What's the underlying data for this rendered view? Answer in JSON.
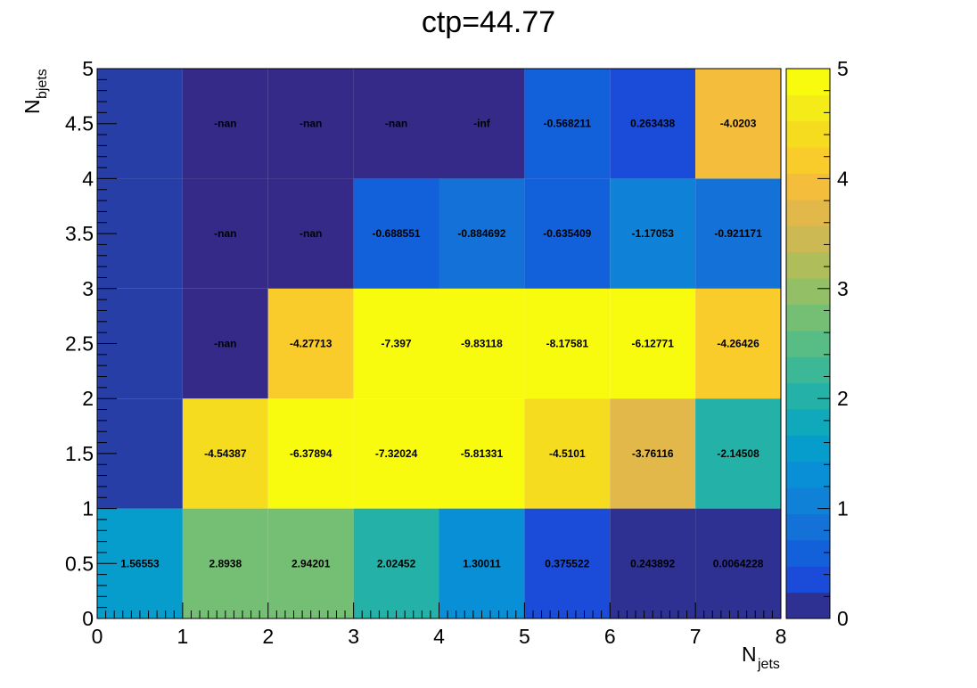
{
  "chart_data": {
    "type": "heatmap",
    "title": "ctp=44.77",
    "xlabel": {
      "main": "N",
      "sub": "jets"
    },
    "ylabel": {
      "main": "N",
      "sub": "bjets"
    },
    "x_edges": [
      0,
      1,
      2,
      3,
      4,
      5,
      6,
      7,
      8
    ],
    "y_edges": [
      0,
      1,
      2,
      3,
      4,
      5
    ],
    "xlim": [
      0,
      8
    ],
    "ylim": [
      0,
      5
    ],
    "x_ticks": [
      "0",
      "1",
      "2",
      "3",
      "4",
      "5",
      "6",
      "7",
      "8"
    ],
    "y_ticks": [
      "0",
      "0.5",
      "1",
      "1.5",
      "2",
      "2.5",
      "3",
      "3.5",
      "4",
      "4.5",
      "5"
    ],
    "z_range": [
      0,
      5
    ],
    "z_ticks": [
      "0",
      "1",
      "2",
      "3",
      "4",
      "5"
    ],
    "cells": [
      {
        "ix": 0,
        "iy": 0,
        "label": "1.56553",
        "z": 1.56553
      },
      {
        "ix": 1,
        "iy": 0,
        "label": "2.8938",
        "z": 2.8938
      },
      {
        "ix": 2,
        "iy": 0,
        "label": "2.94201",
        "z": 2.94201
      },
      {
        "ix": 3,
        "iy": 0,
        "label": "2.02452",
        "z": 2.02452
      },
      {
        "ix": 4,
        "iy": 0,
        "label": "1.30011",
        "z": 1.30011
      },
      {
        "ix": 5,
        "iy": 0,
        "label": "0.375522",
        "z": 0.375522
      },
      {
        "ix": 6,
        "iy": 0,
        "label": "0.243892",
        "z": 0.243892
      },
      {
        "ix": 7,
        "iy": 0,
        "label": "0.0064228",
        "z": 0.0064228
      },
      {
        "ix": 0,
        "iy": 1,
        "label": "",
        "z": 0
      },
      {
        "ix": 1,
        "iy": 1,
        "label": "-4.54387",
        "z": 4.54387
      },
      {
        "ix": 2,
        "iy": 1,
        "label": "-6.37894",
        "z": 6.37894
      },
      {
        "ix": 3,
        "iy": 1,
        "label": "-7.32024",
        "z": 7.32024
      },
      {
        "ix": 4,
        "iy": 1,
        "label": "-5.81331",
        "z": 5.81331
      },
      {
        "ix": 5,
        "iy": 1,
        "label": "-4.5101",
        "z": 4.5101
      },
      {
        "ix": 6,
        "iy": 1,
        "label": "-3.76116",
        "z": 3.76116
      },
      {
        "ix": 7,
        "iy": 1,
        "label": "-2.14508",
        "z": 2.14508
      },
      {
        "ix": 0,
        "iy": 2,
        "label": "",
        "z": 0
      },
      {
        "ix": 1,
        "iy": 2,
        "label": "-nan",
        "z": -1
      },
      {
        "ix": 2,
        "iy": 2,
        "label": "-4.27713",
        "z": 4.27713
      },
      {
        "ix": 3,
        "iy": 2,
        "label": "-7.397",
        "z": 7.397
      },
      {
        "ix": 4,
        "iy": 2,
        "label": "-9.83118",
        "z": 9.83118
      },
      {
        "ix": 5,
        "iy": 2,
        "label": "-8.17581",
        "z": 8.17581
      },
      {
        "ix": 6,
        "iy": 2,
        "label": "-6.12771",
        "z": 6.12771
      },
      {
        "ix": 7,
        "iy": 2,
        "label": "-4.26426",
        "z": 4.26426
      },
      {
        "ix": 0,
        "iy": 3,
        "label": "",
        "z": 0
      },
      {
        "ix": 1,
        "iy": 3,
        "label": "-nan",
        "z": -1
      },
      {
        "ix": 2,
        "iy": 3,
        "label": "-nan",
        "z": -1
      },
      {
        "ix": 3,
        "iy": 3,
        "label": "-0.688551",
        "z": 0.688551
      },
      {
        "ix": 4,
        "iy": 3,
        "label": "-0.884692",
        "z": 0.884692
      },
      {
        "ix": 5,
        "iy": 3,
        "label": "-0.635409",
        "z": 0.635409
      },
      {
        "ix": 6,
        "iy": 3,
        "label": "-1.17053",
        "z": 1.17053
      },
      {
        "ix": 7,
        "iy": 3,
        "label": "-0.921171",
        "z": 0.921171
      },
      {
        "ix": 0,
        "iy": 4,
        "label": "",
        "z": 0
      },
      {
        "ix": 1,
        "iy": 4,
        "label": "-nan",
        "z": -1
      },
      {
        "ix": 2,
        "iy": 4,
        "label": "-nan",
        "z": -1
      },
      {
        "ix": 3,
        "iy": 4,
        "label": "-nan",
        "z": -1
      },
      {
        "ix": 4,
        "iy": 4,
        "label": "-inf",
        "z": -1
      },
      {
        "ix": 5,
        "iy": 4,
        "label": "-0.568211",
        "z": 0.568211
      },
      {
        "ix": 6,
        "iy": 4,
        "label": "0.263438",
        "z": 0.263438
      },
      {
        "ix": 7,
        "iy": 4,
        "label": "-4.0203",
        "z": 4.0203
      }
    ],
    "colors": {
      "empty_cell": "#273ea7",
      "undefined_cell": "#352a87",
      "palette": [
        "#2e3192",
        "#1a4cd9",
        "#1360db",
        "#1471d8",
        "#0f81d6",
        "#098fd5",
        "#069dcc",
        "#10a8bb",
        "#24b2a8",
        "#3db897",
        "#58bd85",
        "#75bf74",
        "#93bf66",
        "#b0bd5b",
        "#ccb953",
        "#e2b84a",
        "#f4bd3b",
        "#f9cc2b",
        "#f6dc1f",
        "#f5eb19",
        "#f9fb0e"
      ],
      "palette_end": "#f9fb0e"
    }
  }
}
